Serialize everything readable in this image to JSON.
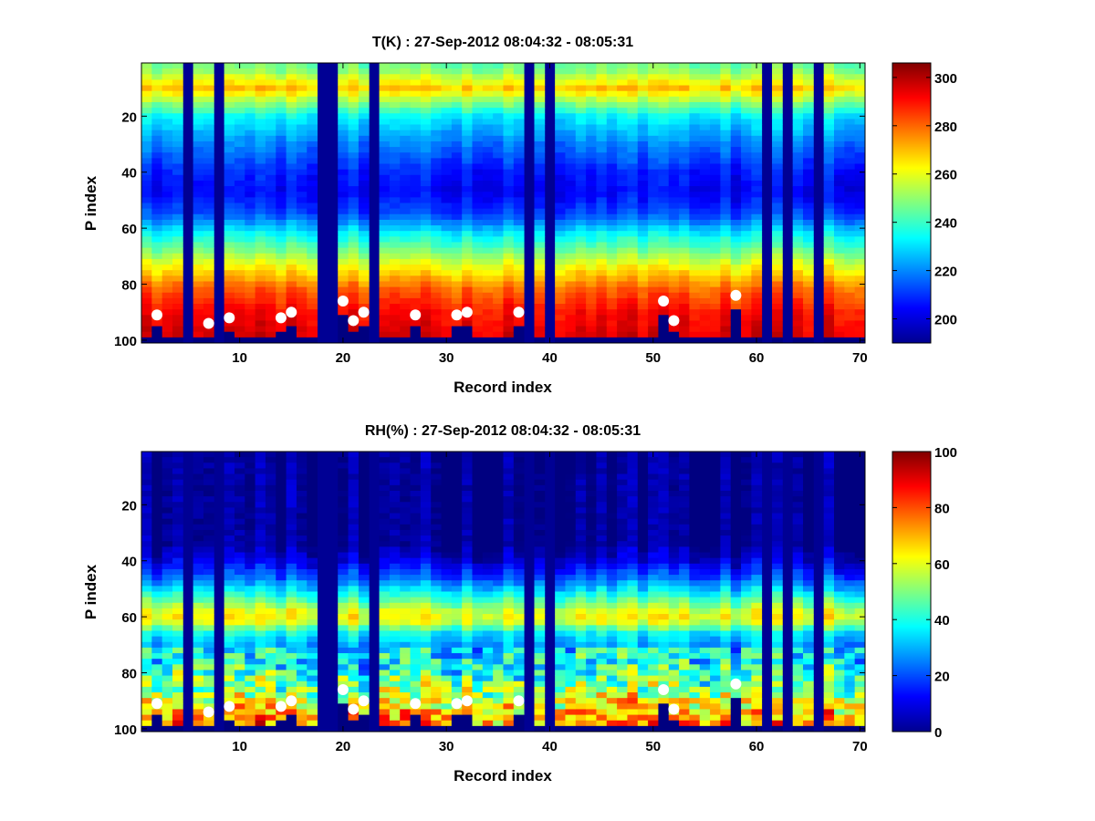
{
  "chart_data": [
    {
      "type": "heatmap",
      "title": "T(K) : 27-Sep-2012 08:04:32 - 08:05:31",
      "xlabel": "Record index",
      "ylabel": "P index",
      "xlim": [
        0.5,
        70.5
      ],
      "ylim": [
        1,
        101
      ],
      "y_reversed": true,
      "xticks": [
        10,
        20,
        30,
        40,
        50,
        60,
        70
      ],
      "yticks": [
        20,
        40,
        60,
        80,
        100
      ],
      "colorbar": {
        "min": 190,
        "max": 306,
        "ticks": [
          200,
          220,
          240,
          260,
          280,
          300
        ],
        "colormap": "jet"
      },
      "missing_records": [
        5,
        8,
        18,
        19,
        23,
        38,
        40,
        61,
        63,
        66
      ],
      "profile_temperature_K": [
        {
          "p_index": 3,
          "value": 246
        },
        {
          "p_index": 10,
          "value": 268
        },
        {
          "p_index": 20,
          "value": 232
        },
        {
          "p_index": 30,
          "value": 218
        },
        {
          "p_index": 40,
          "value": 207
        },
        {
          "p_index": 47,
          "value": 203
        },
        {
          "p_index": 55,
          "value": 212
        },
        {
          "p_index": 62,
          "value": 232
        },
        {
          "p_index": 68,
          "value": 246
        },
        {
          "p_index": 75,
          "value": 264
        },
        {
          "p_index": 82,
          "value": 280
        },
        {
          "p_index": 90,
          "value": 290
        },
        {
          "p_index": 97,
          "value": 294
        }
      ],
      "surface_points": [
        {
          "record": 2,
          "p_index": 91
        },
        {
          "record": 7,
          "p_index": 94
        },
        {
          "record": 9,
          "p_index": 92
        },
        {
          "record": 14,
          "p_index": 92
        },
        {
          "record": 15,
          "p_index": 90
        },
        {
          "record": 20,
          "p_index": 86
        },
        {
          "record": 21,
          "p_index": 93
        },
        {
          "record": 22,
          "p_index": 90
        },
        {
          "record": 27,
          "p_index": 91
        },
        {
          "record": 31,
          "p_index": 91
        },
        {
          "record": 32,
          "p_index": 90
        },
        {
          "record": 37,
          "p_index": 90
        },
        {
          "record": 51,
          "p_index": 86
        },
        {
          "record": 52,
          "p_index": 93
        },
        {
          "record": 58,
          "p_index": 84
        }
      ]
    },
    {
      "type": "heatmap",
      "title": "RH(%) : 27-Sep-2012 08:04:32 - 08:05:31",
      "xlabel": "Record index",
      "ylabel": "P index",
      "xlim": [
        0.5,
        70.5
      ],
      "ylim": [
        1,
        101
      ],
      "y_reversed": true,
      "xticks": [
        10,
        20,
        30,
        40,
        50,
        60,
        70
      ],
      "yticks": [
        20,
        40,
        60,
        80,
        100
      ],
      "colorbar": {
        "min": 0,
        "max": 100,
        "ticks": [
          0,
          20,
          40,
          60,
          80,
          100
        ],
        "colormap": "jet"
      },
      "missing_records": [
        5,
        8,
        18,
        19,
        23,
        38,
        40,
        61,
        63,
        66
      ],
      "profile_rh_percent": [
        {
          "p_index": 1,
          "value": 0
        },
        {
          "p_index": 34,
          "value": 0
        },
        {
          "p_index": 40,
          "value": 8
        },
        {
          "p_index": 46,
          "value": 20
        },
        {
          "p_index": 52,
          "value": 38
        },
        {
          "p_index": 58,
          "value": 58
        },
        {
          "p_index": 61,
          "value": 62
        },
        {
          "p_index": 66,
          "value": 36
        },
        {
          "p_index": 70,
          "value": 28
        },
        {
          "p_index": 76,
          "value": 30
        },
        {
          "p_index": 82,
          "value": 38
        },
        {
          "p_index": 88,
          "value": 48
        },
        {
          "p_index": 94,
          "value": 62
        },
        {
          "p_index": 98,
          "value": 66
        }
      ],
      "surface_points": [
        {
          "record": 2,
          "p_index": 91
        },
        {
          "record": 7,
          "p_index": 94
        },
        {
          "record": 9,
          "p_index": 92
        },
        {
          "record": 14,
          "p_index": 92
        },
        {
          "record": 15,
          "p_index": 90
        },
        {
          "record": 20,
          "p_index": 86
        },
        {
          "record": 21,
          "p_index": 93
        },
        {
          "record": 22,
          "p_index": 90
        },
        {
          "record": 27,
          "p_index": 91
        },
        {
          "record": 31,
          "p_index": 91
        },
        {
          "record": 32,
          "p_index": 90
        },
        {
          "record": 37,
          "p_index": 90
        },
        {
          "record": 51,
          "p_index": 86
        },
        {
          "record": 52,
          "p_index": 93
        },
        {
          "record": 58,
          "p_index": 84
        }
      ]
    }
  ]
}
